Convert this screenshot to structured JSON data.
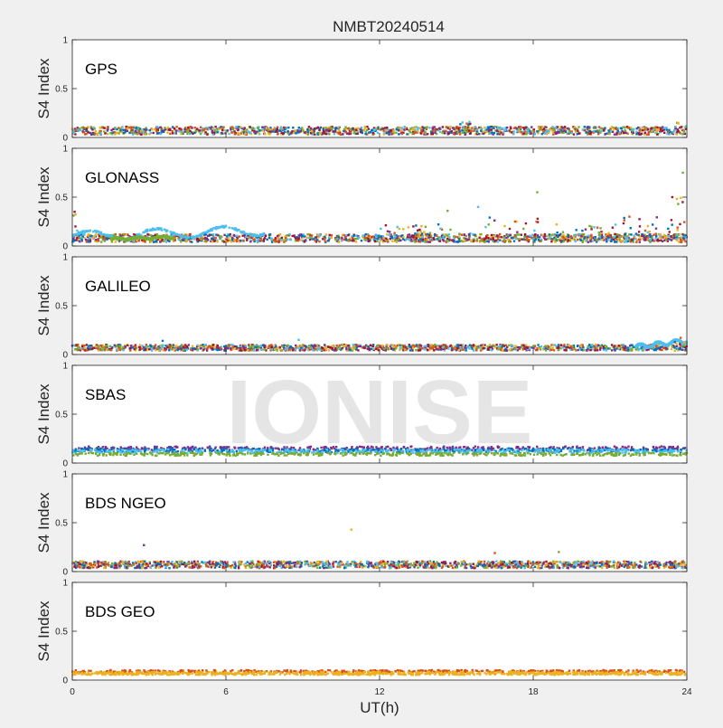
{
  "figure": {
    "title": "NMBT20240514",
    "watermark": "IONISE",
    "xlabel": "UT(h)",
    "series_colors": [
      "#0072bd",
      "#d95319",
      "#edb120",
      "#7e2f8e",
      "#77ac30",
      "#4dbeee",
      "#a2142f"
    ]
  },
  "chart_data": [
    {
      "type": "scatter",
      "label": "GPS",
      "ylabel": "S4 Index",
      "xlim": [
        0,
        24
      ],
      "ylim": [
        0,
        1
      ],
      "xticks": [
        0,
        6,
        12,
        18,
        24
      ],
      "yticks": [
        0,
        0.5,
        1
      ],
      "ytick_labels": [
        "0",
        "0.5",
        "1"
      ],
      "baseline": 0.07,
      "noise": 0.04,
      "bursts": [
        {
          "x": [
            15.0,
            15.6
          ],
          "y": 0.16,
          "n": 8
        },
        {
          "x": [
            23.6,
            24.0
          ],
          "y": 0.15,
          "n": 6
        }
      ]
    },
    {
      "type": "scatter",
      "label": "GLONASS",
      "ylabel": "S4 Index",
      "xlim": [
        0,
        24
      ],
      "ylim": [
        0,
        1
      ],
      "xticks": [
        0,
        6,
        12,
        18,
        24
      ],
      "yticks": [
        0,
        0.5,
        1
      ],
      "ytick_labels": [
        "0",
        "0.5",
        "1"
      ],
      "baseline": 0.08,
      "noise": 0.04,
      "segments": [
        {
          "x": [
            0.0,
            7.5
          ],
          "y0": 0.1,
          "y1": 0.16,
          "wave": 0.05,
          "color": 5
        },
        {
          "x": [
            1.5,
            4.0
          ],
          "y0": 0.07,
          "y1": 0.09,
          "wave": 0.01,
          "color": 4
        }
      ],
      "bursts": [
        {
          "x": [
            0.0,
            0.2
          ],
          "y": 0.35,
          "n": 4
        },
        {
          "x": [
            12.0,
            14.5
          ],
          "y": 0.22,
          "n": 40
        },
        {
          "x": [
            13.5,
            18.0
          ],
          "y": 0.25,
          "n": 24
        },
        {
          "x": [
            14.5,
            17.0
          ],
          "y": 0.4,
          "n": 6
        },
        {
          "x": [
            18.0,
            18.3
          ],
          "y": 0.55,
          "n": 3
        },
        {
          "x": [
            18.0,
            24.0
          ],
          "y": 0.22,
          "n": 60
        },
        {
          "x": [
            21.0,
            23.0
          ],
          "y": 0.3,
          "n": 12
        },
        {
          "x": [
            23.3,
            24.0
          ],
          "y": 0.5,
          "n": 8
        },
        {
          "x": [
            23.8,
            23.9
          ],
          "y": 0.75,
          "n": 1
        }
      ]
    },
    {
      "type": "scatter",
      "label": "GALILEO",
      "ylabel": "S4 Index",
      "xlim": [
        0,
        24
      ],
      "ylim": [
        0,
        1
      ],
      "xticks": [
        0,
        6,
        12,
        18,
        24
      ],
      "yticks": [
        0,
        0.5,
        1
      ],
      "ytick_labels": [
        "0",
        "0.5",
        "1"
      ],
      "baseline": 0.07,
      "noise": 0.03,
      "segments": [
        {
          "x": [
            22.0,
            24.0
          ],
          "y0": 0.08,
          "y1": 0.14,
          "wave": 0.02,
          "color": 5
        }
      ],
      "bursts": [
        {
          "x": [
            3.5,
            4.0
          ],
          "y": 0.14,
          "n": 5
        },
        {
          "x": [
            7.0,
            9.0
          ],
          "y": 0.15,
          "n": 6
        },
        {
          "x": [
            23.5,
            24.0
          ],
          "y": 0.17,
          "n": 5
        }
      ]
    },
    {
      "type": "scatter",
      "label": "SBAS",
      "ylabel": "S4 Index",
      "xlim": [
        0,
        24
      ],
      "ylim": [
        0,
        1
      ],
      "xticks": [
        0,
        6,
        12,
        18,
        24
      ],
      "yticks": [
        0,
        0.5,
        1
      ],
      "ytick_labels": [
        "0",
        "0.5",
        "1"
      ],
      "bands": [
        {
          "y": 0.15,
          "spread": 0.02,
          "color": 3
        },
        {
          "y": 0.13,
          "spread": 0.02,
          "color": 0
        },
        {
          "y": 0.12,
          "spread": 0.02,
          "color": 5
        },
        {
          "y": 0.09,
          "spread": 0.015,
          "color": 4
        }
      ]
    },
    {
      "type": "scatter",
      "label": "BDS NGEO",
      "ylabel": "S4 Index",
      "xlim": [
        0,
        24
      ],
      "ylim": [
        0,
        1
      ],
      "xticks": [
        0,
        6,
        12,
        18,
        24
      ],
      "yticks": [
        0,
        0.5,
        1
      ],
      "ytick_labels": [
        "0",
        "0.5",
        "1"
      ],
      "baseline": 0.07,
      "noise": 0.035,
      "outliers": [
        {
          "x": 2.8,
          "y": 0.27,
          "color": 3
        },
        {
          "x": 10.9,
          "y": 0.43,
          "color": 2
        },
        {
          "x": 16.5,
          "y": 0.19,
          "color": 1
        },
        {
          "x": 19.0,
          "y": 0.2,
          "color": 4
        }
      ]
    },
    {
      "type": "scatter",
      "label": "BDS GEO",
      "ylabel": "S4 Index",
      "xlim": [
        0,
        24
      ],
      "ylim": [
        0,
        1
      ],
      "xticks": [
        0,
        6,
        12,
        18,
        24
      ],
      "yticks": [
        0,
        0.5,
        1
      ],
      "ytick_labels": [
        "0",
        "0.5",
        "1"
      ],
      "xtick_labels": [
        "0",
        "6",
        "12",
        "18",
        "24"
      ],
      "bands": [
        {
          "y": 0.09,
          "spread": 0.012,
          "color": 1
        },
        {
          "y": 0.075,
          "spread": 0.01,
          "color": 2
        },
        {
          "y": 0.06,
          "spread": 0.008,
          "color": 2
        }
      ]
    }
  ]
}
